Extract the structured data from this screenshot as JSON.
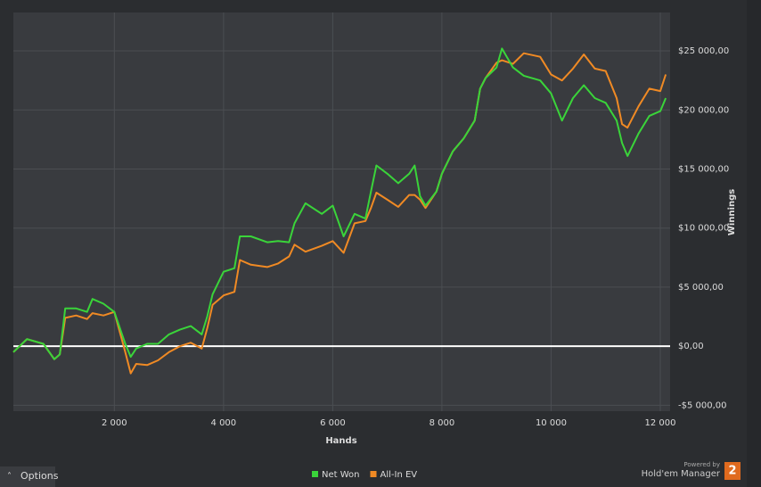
{
  "chart_data": {
    "type": "line",
    "x_label": "Hands",
    "y_label": "Winnings",
    "x": [
      150,
      400,
      700,
      900,
      1000,
      1100,
      1300,
      1500,
      1600,
      1800,
      2000,
      2200,
      2300,
      2400,
      2600,
      2800,
      3000,
      3200,
      3400,
      3600,
      3700,
      3800,
      4000,
      4200,
      4300,
      4500,
      4800,
      5000,
      5200,
      5300,
      5500,
      5800,
      6000,
      6200,
      6400,
      6600,
      6700,
      6800,
      7000,
      7200,
      7400,
      7500,
      7600,
      7700,
      7900,
      8000,
      8200,
      8400,
      8600,
      8700,
      8800,
      9000,
      9100,
      9300,
      9500,
      9800,
      10000,
      10200,
      10400,
      10600,
      10800,
      11000,
      11200,
      11300,
      11400,
      11600,
      11800,
      12000,
      12100
    ],
    "series": [
      {
        "name": "Net Won",
        "color": "#3ad43a",
        "values": [
          -500,
          600,
          200,
          -1100,
          -700,
          3200,
          3200,
          2900,
          4000,
          3600,
          2900,
          200,
          -900,
          -200,
          200,
          200,
          1000,
          1400,
          1700,
          1000,
          2500,
          4400,
          6300,
          6600,
          9300,
          9300,
          8800,
          8900,
          8800,
          10400,
          12100,
          11200,
          11900,
          9300,
          11200,
          10800,
          13100,
          15300,
          14600,
          13800,
          14600,
          15300,
          12700,
          11900,
          13100,
          14600,
          16500,
          17600,
          19100,
          21800,
          22700,
          23600,
          25200,
          23600,
          22900,
          22500,
          21400,
          19100,
          21000,
          22100,
          21000,
          20600,
          19100,
          17200,
          16100,
          18000,
          19500,
          19900,
          21000
        ]
      },
      {
        "name": "All-In EV",
        "color": "#f08a24",
        "values": [
          -500,
          600,
          200,
          -1100,
          -700,
          2400,
          2600,
          2300,
          2800,
          2600,
          2900,
          -500,
          -2300,
          -1500,
          -1600,
          -1200,
          -500,
          0,
          300,
          -200,
          1500,
          3500,
          4300,
          4600,
          7300,
          6900,
          6700,
          7000,
          7600,
          8600,
          8000,
          8500,
          8900,
          7900,
          10400,
          10600,
          11700,
          13000,
          12400,
          11800,
          12800,
          12800,
          12400,
          11700,
          13100,
          14600,
          16500,
          17600,
          19100,
          21800,
          22700,
          24000,
          24200,
          23900,
          24800,
          24500,
          23000,
          22500,
          23500,
          24700,
          23500,
          23300,
          21000,
          18800,
          18500,
          20300,
          21800,
          21600,
          23000
        ]
      }
    ],
    "xlim": [
      150,
      12180
    ],
    "ylim": [
      -5500,
      28250
    ],
    "xticks": [
      {
        "value": 2000,
        "label": "2 000"
      },
      {
        "value": 4000,
        "label": "4 000"
      },
      {
        "value": 6000,
        "label": "6 000"
      },
      {
        "value": 8000,
        "label": "8 000"
      },
      {
        "value": 10000,
        "label": "10 000"
      },
      {
        "value": 12000,
        "label": "12 000"
      }
    ],
    "yticks": [
      {
        "value": -5000,
        "label": "-$5 000,00"
      },
      {
        "value": 0,
        "label": "$0,00"
      },
      {
        "value": 5000,
        "label": "$5 000,00"
      },
      {
        "value": 10000,
        "label": "$10 000,00"
      },
      {
        "value": 15000,
        "label": "$15 000,00"
      },
      {
        "value": 20000,
        "label": "$20 000,00"
      },
      {
        "value": 25000,
        "label": "$25 000,00"
      }
    ],
    "grid": true,
    "legend": "bottom"
  },
  "footer": {
    "options": "Options",
    "powered_by": "Powered by",
    "brand": "Hold'em Manager",
    "logo": "2"
  }
}
